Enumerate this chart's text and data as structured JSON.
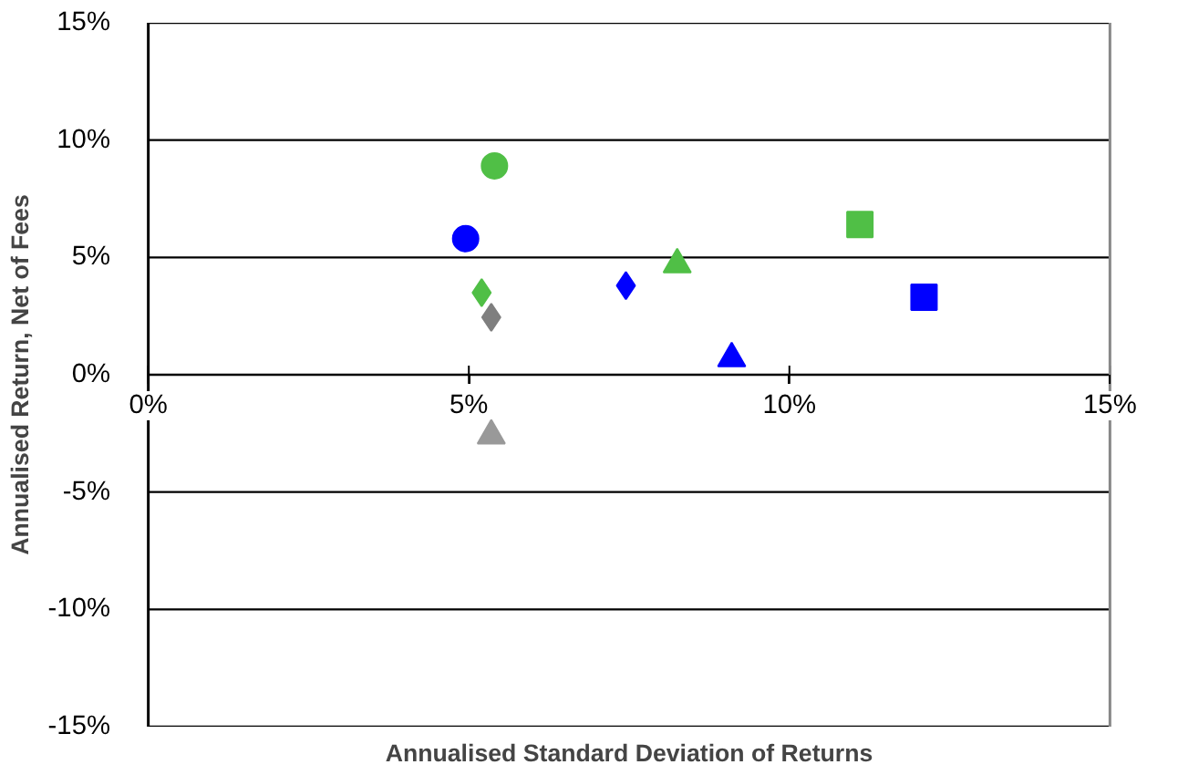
{
  "chart_data": {
    "type": "scatter",
    "xlabel": "Annualised Standard Deviation of Returns",
    "ylabel": "Annualised Return, Net of Fees",
    "xlim": [
      0,
      15
    ],
    "ylim": [
      -15,
      15
    ],
    "xticks": [
      {
        "value": 0,
        "label": "0%"
      },
      {
        "value": 5,
        "label": "5%"
      },
      {
        "value": 10,
        "label": "10%"
      },
      {
        "value": 15,
        "label": "15%"
      }
    ],
    "yticks": [
      {
        "value": -15,
        "label": "-15%"
      },
      {
        "value": -10,
        "label": "-10%"
      },
      {
        "value": -5,
        "label": "-5%"
      },
      {
        "value": 0,
        "label": "0%"
      },
      {
        "value": 5,
        "label": "5%"
      },
      {
        "value": 10,
        "label": "10%"
      },
      {
        "value": 15,
        "label": "15%"
      }
    ],
    "grid": "y",
    "series": [
      {
        "color": "#0000ff",
        "marker": "circle",
        "x": [
          4.95
        ],
        "values": [
          5.8
        ]
      },
      {
        "color": "#50bf46",
        "marker": "circle",
        "x": [
          5.4
        ],
        "values": [
          8.9
        ]
      },
      {
        "color": "#50bf46",
        "marker": "diamond",
        "x": [
          5.2
        ],
        "values": [
          3.5
        ]
      },
      {
        "color": "#7f7f7f",
        "marker": "diamond",
        "x": [
          5.35
        ],
        "values": [
          2.45
        ]
      },
      {
        "color": "#999999",
        "marker": "triangle",
        "x": [
          5.35
        ],
        "values": [
          -2.6
        ]
      },
      {
        "color": "#0000ff",
        "marker": "diamond",
        "x": [
          7.45
        ],
        "values": [
          3.8
        ]
      },
      {
        "color": "#50bf46",
        "marker": "triangle",
        "x": [
          8.25
        ],
        "values": [
          4.7
        ]
      },
      {
        "color": "#0000ff",
        "marker": "triangle",
        "x": [
          9.1
        ],
        "values": [
          0.7
        ]
      },
      {
        "color": "#50bf46",
        "marker": "square",
        "x": [
          11.1
        ],
        "values": [
          6.4
        ]
      },
      {
        "color": "#0000ff",
        "marker": "square",
        "x": [
          12.1
        ],
        "values": [
          3.3
        ]
      }
    ]
  }
}
